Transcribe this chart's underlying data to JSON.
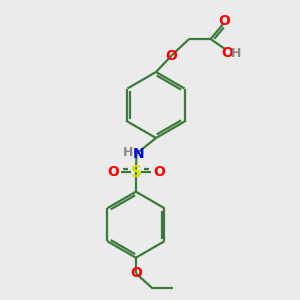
{
  "bg_color": "#ebebeb",
  "bond_color": "#3a7a3a",
  "atom_colors": {
    "O": "#ff0000",
    "N": "#0000ee",
    "S": "#dddd00",
    "H": "#888888",
    "C": "#3a7a3a"
  },
  "bond_lw": 1.6,
  "font_size": 10,
  "figsize": [
    3.0,
    3.0
  ],
  "dpi": 100,
  "xlim": [
    0,
    10
  ],
  "ylim": [
    0,
    10
  ]
}
